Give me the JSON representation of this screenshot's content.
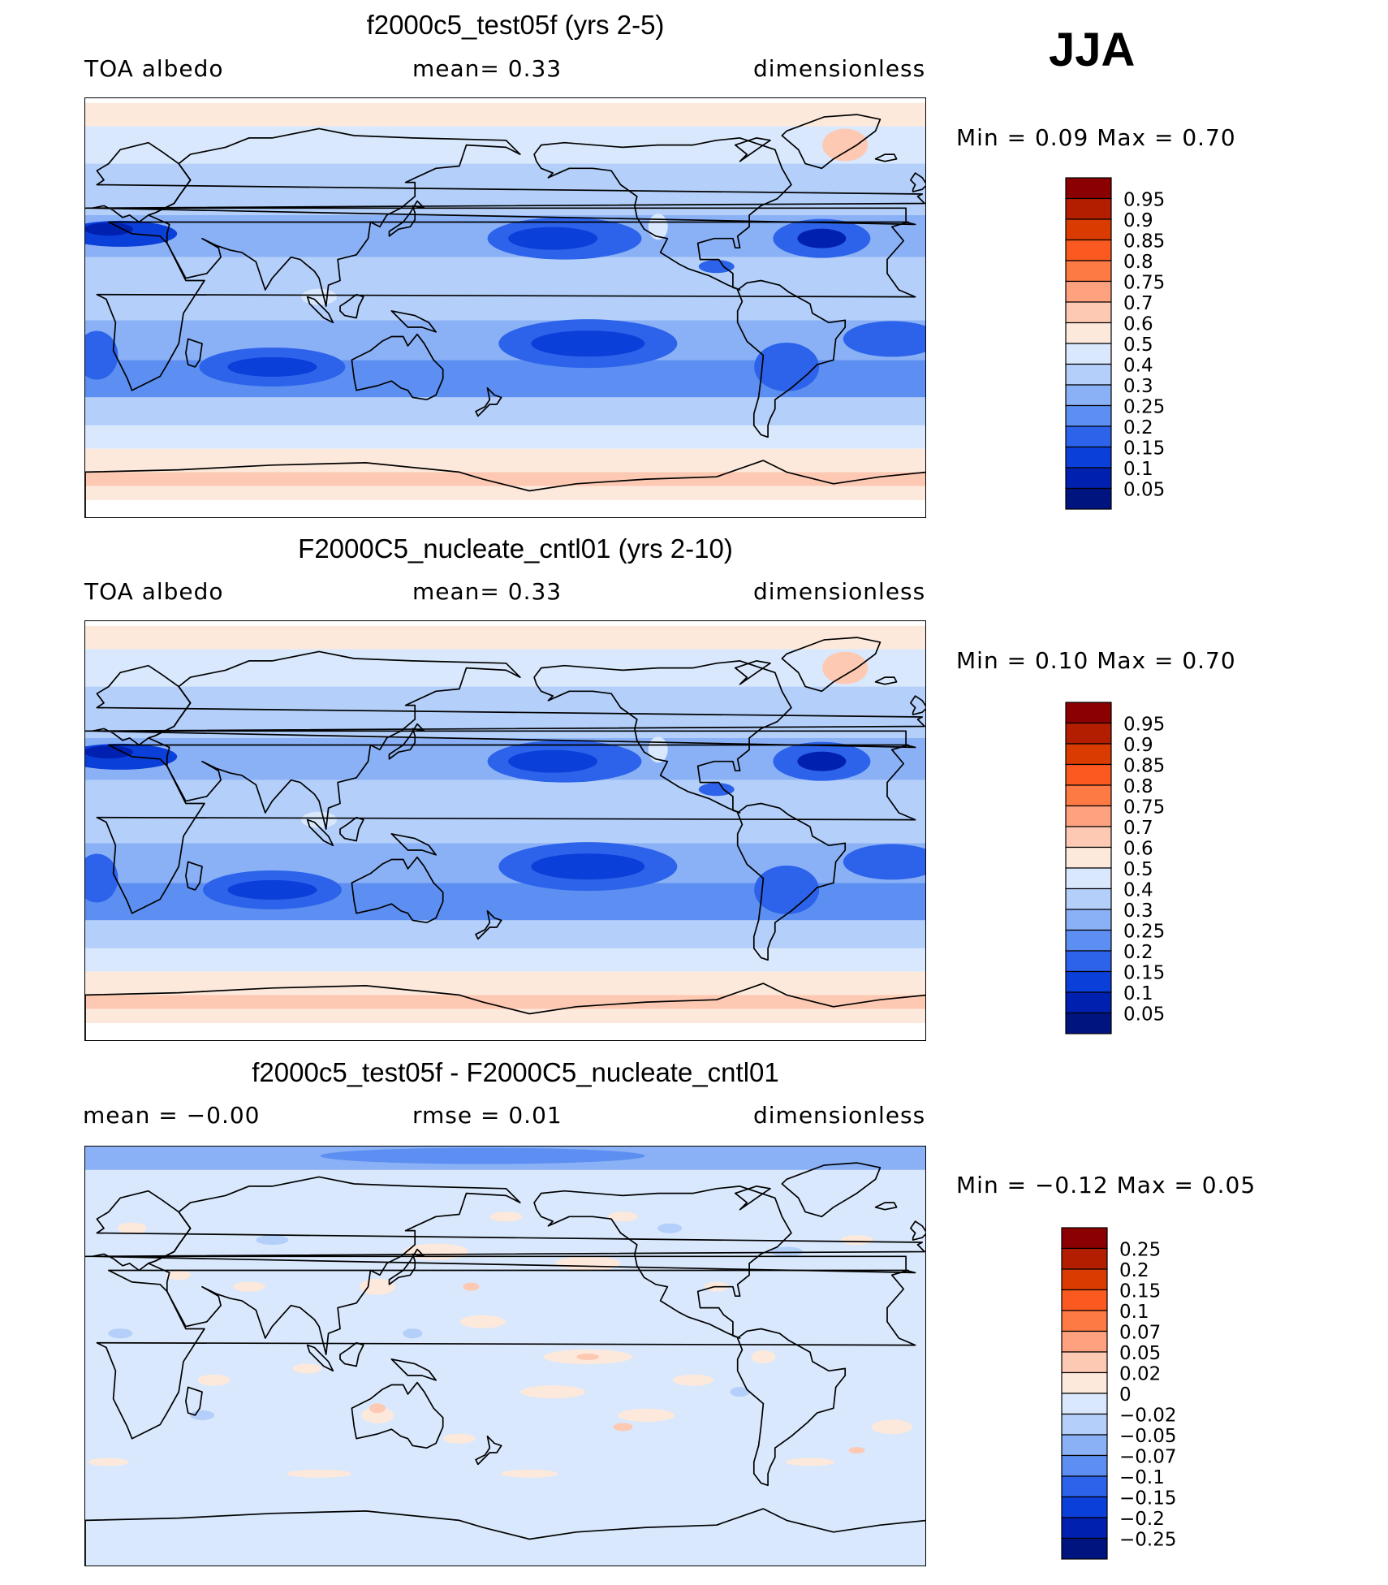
{
  "season": "JJA",
  "panels": [
    {
      "title": "f2000c5_test05f (yrs 2-5)",
      "left_label": "TOA  albedo",
      "center_label": "mean=    0.33",
      "right_label": "dimensionless",
      "min_max": "Min  =     0.09  Max  =     0.70",
      "kind": "field"
    },
    {
      "title": "F2000C5_nucleate_cntl01 (yrs 2-10)",
      "left_label": "TOA  albedo",
      "center_label": "mean=    0.33",
      "right_label": "dimensionless",
      "min_max": "Min  =     0.10  Max  =     0.70",
      "kind": "field"
    },
    {
      "title": "f2000c5_test05f - F2000C5_nucleate_cntl01",
      "left_label": "mean  =   −0.00",
      "center_label": "rmse  =    0.01",
      "right_label": "dimensionless",
      "min_max": "Min  =   −0.12  Max  =    0.05",
      "kind": "diff"
    }
  ],
  "chart_data": [
    {
      "type": "heatmap",
      "title": "f2000c5_test05f (yrs 2-5)",
      "variable": "TOA albedo",
      "units": "dimensionless",
      "mean": 0.33,
      "min": 0.09,
      "max": 0.7,
      "colorbar_levels": [
        "0.95",
        "0.9",
        "0.85",
        "0.8",
        "0.75",
        "0.7",
        "0.6",
        "0.5",
        "0.4",
        "0.3",
        "0.25",
        "0.2",
        "0.15",
        "0.1",
        "0.05"
      ]
    },
    {
      "type": "heatmap",
      "title": "F2000C5_nucleate_cntl01 (yrs 2-10)",
      "variable": "TOA albedo",
      "units": "dimensionless",
      "mean": 0.33,
      "min": 0.1,
      "max": 0.7,
      "colorbar_levels": [
        "0.95",
        "0.9",
        "0.85",
        "0.8",
        "0.75",
        "0.7",
        "0.6",
        "0.5",
        "0.4",
        "0.3",
        "0.25",
        "0.2",
        "0.15",
        "0.1",
        "0.05"
      ]
    },
    {
      "type": "heatmap",
      "title": "f2000c5_test05f - F2000C5_nucleate_cntl01",
      "units": "dimensionless",
      "mean": -0.0,
      "rmse": 0.01,
      "min": -0.12,
      "max": 0.05,
      "colorbar_levels": [
        "0.25",
        "0.2",
        "0.15",
        "0.1",
        "0.07",
        "0.05",
        "0.02",
        "0",
        "−0.02",
        "−0.05",
        "−0.07",
        "−0.1",
        "−0.15",
        "−0.2",
        "−0.25"
      ]
    }
  ],
  "colors": {
    "scale": [
      "#8b0000",
      "#b31e00",
      "#d93b00",
      "#fa5a20",
      "#fd7a45",
      "#fda17f",
      "#fdc9b3",
      "#fde9dc",
      "#d9e8fc",
      "#b3cffa",
      "#8ab1f6",
      "#5c8ff1",
      "#2d63ea",
      "#0a3fd9",
      "#0020b0",
      "#001480"
    ],
    "land_outline": "#000000"
  }
}
